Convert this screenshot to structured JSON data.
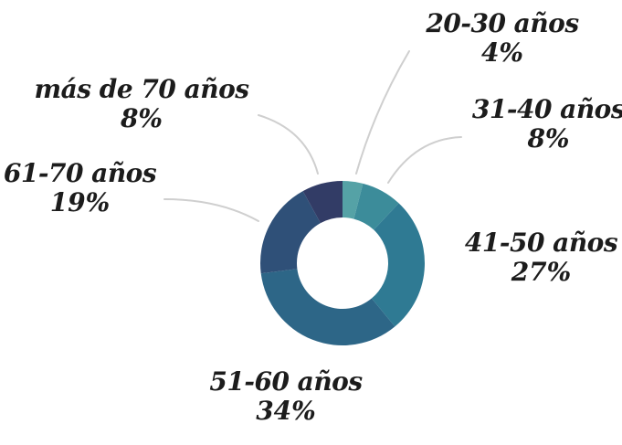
{
  "chart_data": {
    "type": "pie",
    "variant": "donut",
    "title": "",
    "slices": [
      {
        "label": "20-30 años",
        "value": 4,
        "value_label": "4%",
        "color": "#55a2a6"
      },
      {
        "label": "31-40 años",
        "value": 8,
        "value_label": "8%",
        "color": "#3c8c9a"
      },
      {
        "label": "41-50 años",
        "value": 27,
        "value_label": "27%",
        "color": "#2f7a93"
      },
      {
        "label": "51-60 años",
        "value": 34,
        "value_label": "34%",
        "color": "#2d6687"
      },
      {
        "label": "61-70 años",
        "value": 19,
        "value_label": "19%",
        "color": "#2f5078"
      },
      {
        "label": "más de 70 años",
        "value": 8,
        "value_label": "8%",
        "color": "#323c66"
      }
    ],
    "legend": "none",
    "leader_lines_color": "#cfcfcf"
  }
}
